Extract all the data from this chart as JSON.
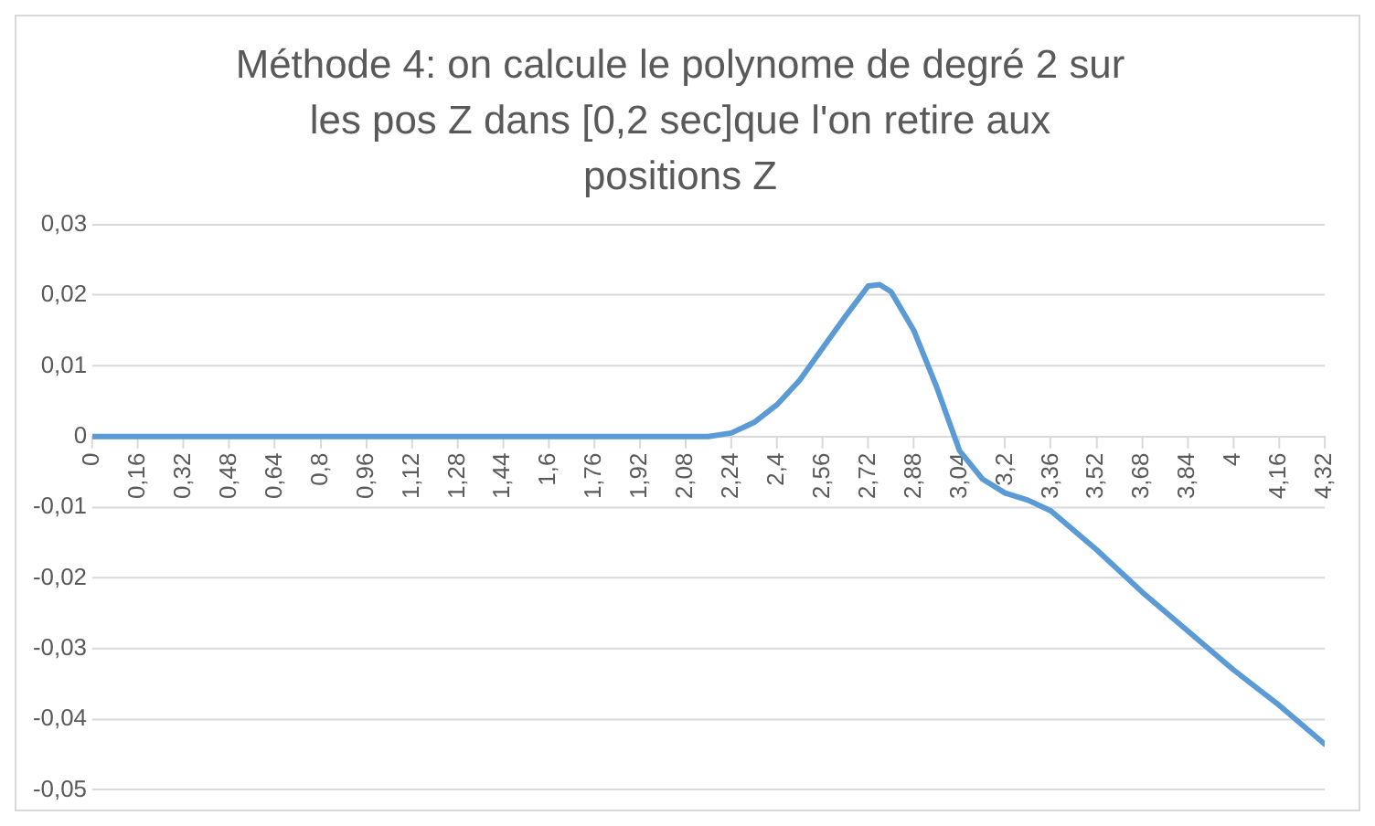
{
  "chart_data": {
    "type": "line",
    "title": "Méthode 4: on calcule le polynome de degré 2 sur les pos Z dans [0,2 sec]que l'on retire aux positions Z",
    "series": [
      {
        "color": "#5b9bd5",
        "x": [
          0,
          0.32,
          0.64,
          0.96,
          1.28,
          1.6,
          1.92,
          2.16,
          2.24,
          2.32,
          2.4,
          2.48,
          2.56,
          2.64,
          2.72,
          2.76,
          2.8,
          2.88,
          2.96,
          3.04,
          3.12,
          3.2,
          3.28,
          3.36,
          3.52,
          3.68,
          3.84,
          4,
          4.16,
          4.32
        ],
        "values": [
          0,
          0,
          0,
          0,
          0,
          0,
          0,
          0,
          0.0005,
          0.002,
          0.0045,
          0.008,
          0.0125,
          0.017,
          0.0213,
          0.0215,
          0.0205,
          0.015,
          0.007,
          -0.002,
          -0.006,
          -0.008,
          -0.009,
          -0.0105,
          -0.016,
          -0.022,
          -0.0275,
          -0.033,
          -0.038,
          -0.0435
        ]
      }
    ],
    "xlim": [
      0,
      4.32
    ],
    "xticks": [
      0,
      {
        "value": 0.16,
        "label": "0,16"
      },
      {
        "value": 0.32,
        "label": "0,32"
      },
      {
        "value": 0.48,
        "label": "0,48"
      },
      {
        "value": 0.64,
        "label": "0,64"
      },
      {
        "value": 0.8,
        "label": "0,8"
      },
      {
        "value": 0.96,
        "label": "0,96"
      },
      {
        "value": 1.12,
        "label": "1,12"
      },
      {
        "value": 1.28,
        "label": "1,28"
      },
      {
        "value": 1.44,
        "label": "1,44"
      },
      {
        "value": 1.6,
        "label": "1,6"
      },
      {
        "value": 1.76,
        "label": "1,76"
      },
      {
        "value": 1.92,
        "label": "1,92"
      },
      {
        "value": 2.08,
        "label": "2,08"
      },
      {
        "value": 2.24,
        "label": "2,24"
      },
      {
        "value": 2.4,
        "label": "2,4"
      },
      {
        "value": 2.56,
        "label": "2,56"
      },
      {
        "value": 2.72,
        "label": "2,72"
      },
      {
        "value": 2.88,
        "label": "2,88"
      },
      {
        "value": 3.04,
        "label": "3,04"
      },
      {
        "value": 3.2,
        "label": "3,2"
      },
      {
        "value": 3.36,
        "label": "3,36"
      },
      {
        "value": 3.52,
        "label": "3,52"
      },
      {
        "value": 3.68,
        "label": "3,68"
      },
      {
        "value": 3.84,
        "label": "3,84"
      },
      4,
      {
        "value": 4.16,
        "label": "4,16"
      },
      {
        "value": 4.32,
        "label": "4,32"
      }
    ],
    "ylim": [
      -0.05,
      0.03
    ],
    "yticks": [
      {
        "value": 0.03,
        "label": "0,03"
      },
      {
        "value": 0.02,
        "label": "0,02"
      },
      {
        "value": 0.01,
        "label": "0,01"
      },
      0,
      {
        "value": -0.01,
        "label": "-0,01"
      },
      {
        "value": -0.02,
        "label": "-0,02"
      },
      {
        "value": -0.03,
        "label": "-0,03"
      },
      {
        "value": -0.04,
        "label": "-0,04"
      },
      {
        "value": -0.05,
        "label": "-0,05"
      }
    ],
    "grid": "y",
    "legend": false,
    "marker": "none",
    "line_style": "solid"
  }
}
